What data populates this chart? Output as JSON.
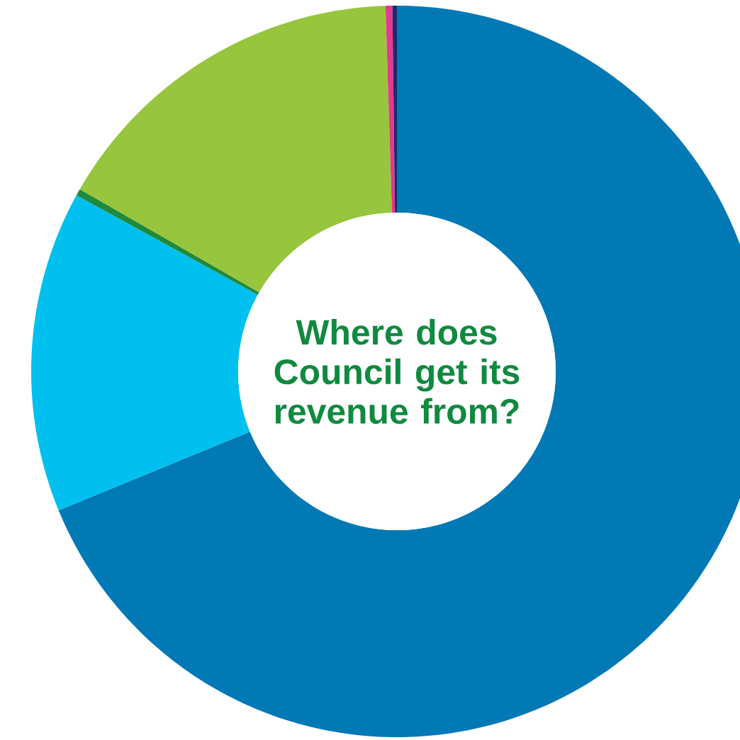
{
  "chart_data": {
    "type": "donut",
    "title": "Where does Council get its revenue from?",
    "categories": [
      null,
      null,
      null,
      null,
      null,
      null
    ],
    "values": [
      68.8,
      14.2,
      0.3,
      16.2,
      0.3,
      0.2
    ],
    "colors": [
      "#0079b5",
      "#00c0ef",
      "#1e8a3c",
      "#97c53d",
      "#e5398d",
      "#1d2a6e"
    ]
  }
}
